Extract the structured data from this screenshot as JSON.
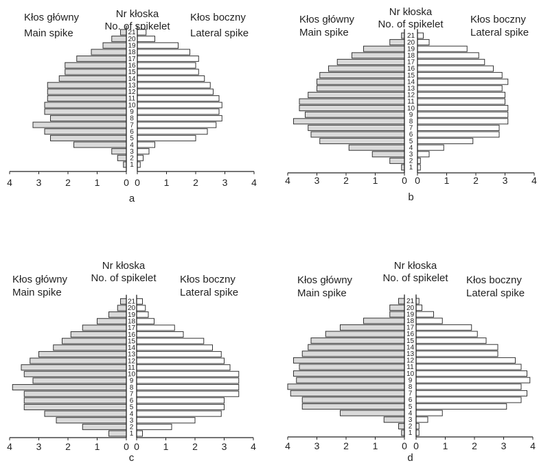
{
  "chart_data": [
    {
      "type": "bar",
      "caption": "a",
      "headers": {
        "left_pl": "Kłos główny",
        "left_en": "Main spike",
        "center_pl": "Nr kłoska",
        "center_en": "No. of spikelet",
        "right_pl": "Kłos boczny",
        "right_en": "Lateral spike"
      },
      "categories": [
        1,
        2,
        3,
        4,
        5,
        6,
        7,
        8,
        9,
        10,
        11,
        12,
        13,
        14,
        15,
        16,
        17,
        18,
        19,
        20,
        21
      ],
      "series": [
        {
          "name": "Main spike",
          "values": [
            0.1,
            0.3,
            0.5,
            1.8,
            2.6,
            2.8,
            3.2,
            2.6,
            2.8,
            2.8,
            2.7,
            2.7,
            2.7,
            2.3,
            2.1,
            2.1,
            1.7,
            1.2,
            0.8,
            0.5,
            0.2
          ]
        },
        {
          "name": "Lateral spike",
          "values": [
            0.1,
            0.2,
            0.4,
            0.6,
            2.0,
            2.4,
            2.7,
            2.9,
            2.8,
            2.9,
            2.8,
            2.6,
            2.5,
            2.3,
            2.1,
            2.0,
            2.1,
            1.8,
            1.4,
            0.6,
            0.3
          ]
        }
      ],
      "xlim": [
        0,
        4
      ],
      "left_ticks": [
        "4",
        "3",
        "2",
        "1",
        "0"
      ],
      "right_ticks": [
        "0",
        "1",
        "2",
        "3",
        "4"
      ]
    },
    {
      "type": "bar",
      "caption": "b",
      "headers": {
        "left_pl": "Kłos główny",
        "left_en": "Main spike",
        "center_pl": "Nr kłoska",
        "center_en": "No. of spikelet",
        "right_pl": "Kłos boczny",
        "right_en": "Lateral spike"
      },
      "categories": [
        1,
        2,
        3,
        4,
        5,
        6,
        7,
        8,
        9,
        10,
        11,
        12,
        13,
        14,
        15,
        16,
        17,
        18,
        19,
        20,
        21
      ],
      "series": [
        {
          "name": "Main spike",
          "values": [
            0.1,
            0.5,
            1.1,
            1.9,
            2.9,
            3.2,
            3.3,
            3.8,
            3.4,
            3.6,
            3.6,
            3.3,
            3.0,
            3.0,
            2.9,
            2.6,
            2.3,
            1.8,
            1.4,
            0.5,
            0.1
          ]
        },
        {
          "name": "Lateral spike",
          "values": [
            0.1,
            0.1,
            0.4,
            0.9,
            1.9,
            2.8,
            2.8,
            3.1,
            3.1,
            3.1,
            3.0,
            3.0,
            2.9,
            3.1,
            2.9,
            2.6,
            2.3,
            2.1,
            1.7,
            0.4,
            0.2
          ]
        }
      ],
      "xlim": [
        0,
        4
      ],
      "left_ticks": [
        "4",
        "3",
        "2",
        "1",
        "0"
      ],
      "right_ticks": [
        "0",
        "1",
        "2",
        "3",
        "4"
      ]
    },
    {
      "type": "bar",
      "caption": "c",
      "headers": {
        "left_pl": "Kłos główny",
        "left_en": "Main spike",
        "center_pl": "Nr kłoska",
        "center_en": "No. of spikelet",
        "right_pl": "Kłos boczny",
        "right_en": "Lateral spike"
      },
      "categories": [
        1,
        2,
        3,
        4,
        5,
        6,
        7,
        8,
        9,
        10,
        11,
        12,
        13,
        14,
        15,
        16,
        17,
        18,
        19,
        20,
        21
      ],
      "series": [
        {
          "name": "Main spike",
          "values": [
            0.6,
            1.5,
            2.4,
            2.8,
            3.5,
            3.5,
            3.5,
            3.9,
            3.2,
            3.5,
            3.6,
            3.3,
            3.0,
            2.5,
            2.2,
            1.9,
            1.5,
            1.0,
            0.6,
            0.3,
            0.2
          ]
        },
        {
          "name": "Lateral spike",
          "values": [
            0.2,
            1.2,
            2.0,
            2.9,
            3.0,
            3.0,
            3.5,
            3.5,
            3.5,
            3.5,
            3.2,
            3.0,
            2.9,
            2.6,
            2.3,
            1.6,
            1.3,
            0.6,
            0.4,
            0.3,
            0.2
          ]
        }
      ],
      "xlim": [
        0,
        4
      ],
      "left_ticks": [
        "4",
        "3",
        "2",
        "1",
        "0"
      ],
      "right_ticks": [
        "0",
        "1",
        "2",
        "3",
        "4"
      ]
    },
    {
      "type": "bar",
      "caption": "d",
      "headers": {
        "left_pl": "Kłos główny",
        "left_en": "Main spike",
        "center_pl": "Nr kłoska",
        "center_en": "No. of spikelet",
        "right_pl": "Kłos boczny",
        "right_en": "Lateral spike"
      },
      "categories": [
        1,
        2,
        3,
        4,
        5,
        6,
        7,
        8,
        9,
        10,
        11,
        12,
        13,
        14,
        15,
        16,
        17,
        18,
        19,
        20,
        21
      ],
      "series": [
        {
          "name": "Main spike",
          "values": [
            0.1,
            0.2,
            0.7,
            2.2,
            3.5,
            3.5,
            3.9,
            4.0,
            3.7,
            3.8,
            3.6,
            3.8,
            3.5,
            3.3,
            3.2,
            2.7,
            2.2,
            1.4,
            0.5,
            0.5,
            0.2
          ]
        },
        {
          "name": "Lateral spike",
          "values": [
            0.1,
            0.1,
            0.4,
            0.9,
            3.1,
            3.6,
            3.8,
            3.6,
            3.9,
            3.8,
            3.6,
            3.4,
            2.8,
            2.8,
            2.4,
            2.1,
            1.9,
            0.9,
            0.6,
            0.2,
            0.1
          ]
        }
      ],
      "xlim": [
        0,
        4
      ],
      "left_ticks": [
        "4",
        "3",
        "2",
        "1",
        "0"
      ],
      "right_ticks": [
        "0",
        "1",
        "2",
        "3",
        "4"
      ]
    }
  ]
}
